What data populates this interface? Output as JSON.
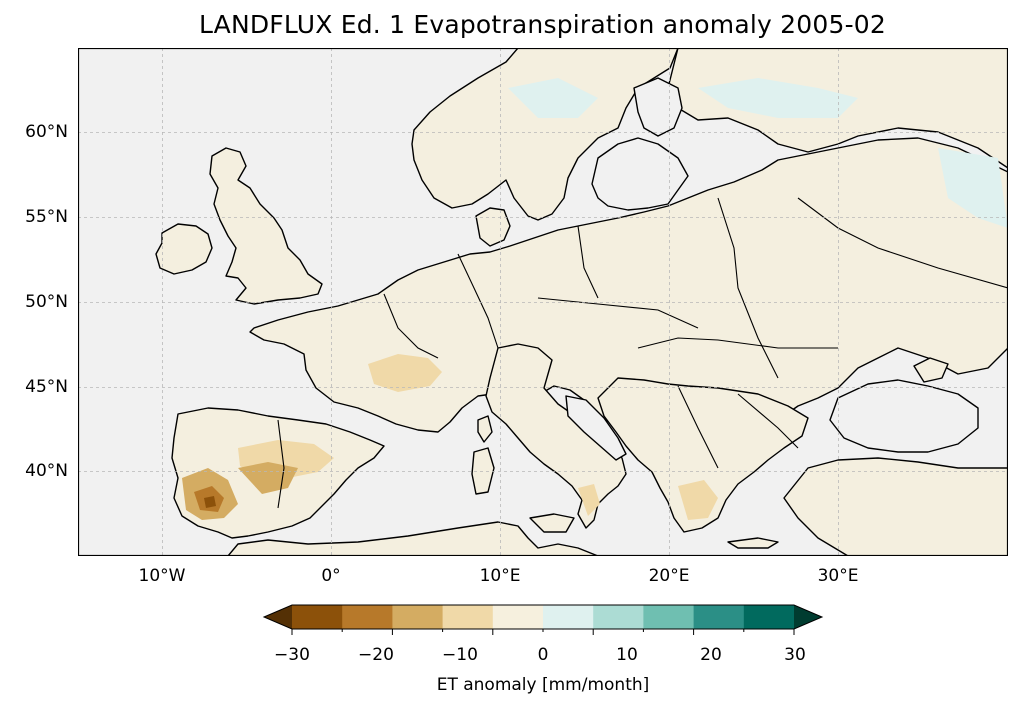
{
  "title": "LANDFLUX Ed. 1 Evapotranspiration anomaly 2005-02",
  "map": {
    "lon_range": [
      -15,
      40
    ],
    "lat_range": [
      35,
      65
    ],
    "gridlines": true,
    "ocean_color": "#f1f1f1",
    "land_color": "#f4efdf",
    "coastline_color": "#000000",
    "lon_ticks": [
      "10°W",
      "0°",
      "10°E",
      "20°E",
      "30°E"
    ],
    "lat_ticks": [
      "60°N",
      "55°N",
      "50°N",
      "45°N",
      "40°N"
    ]
  },
  "colorbar": {
    "label": "ET anomaly [mm/month]",
    "tick_labels": [
      "−30",
      "−20",
      "−10",
      "0",
      "10",
      "20",
      "30"
    ],
    "colors": [
      "#543005",
      "#8c510a",
      "#b7792a",
      "#d4ac62",
      "#f0d9a8",
      "#f6f0de",
      "#dff1ef",
      "#acdcd4",
      "#6fbfb1",
      "#2b8f86",
      "#016a5e",
      "#003c30"
    ],
    "extend": "both"
  }
}
